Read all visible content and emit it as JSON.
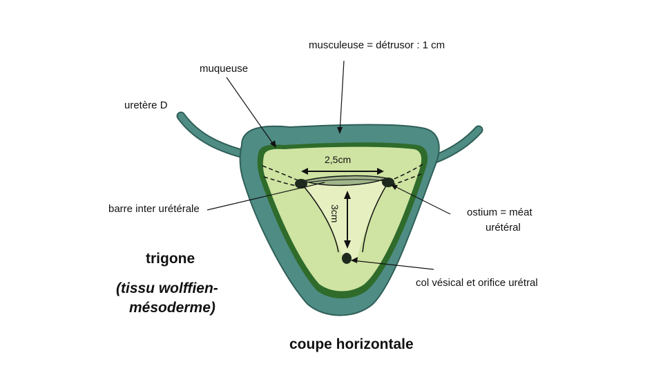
{
  "labels": {
    "musculeuse": "musculeuse = détrusor : 1 cm",
    "muqueuse": "muqueuse",
    "uretere": "uretère D",
    "barre": "barre inter urétérale",
    "ostium_line1": "ostium = méat",
    "ostium_line2": "urétéral",
    "col": "col vésical et orifice urétral"
  },
  "dimensions": {
    "width_label": "2,5cm",
    "height_label": "3cm"
  },
  "captions": {
    "trigone": "trigone",
    "tissu_line1": "(tissu wolffien-",
    "tissu_line2": "mésoderme)",
    "coupe": "coupe horizontale"
  },
  "colors": {
    "muscle": "#4f8c84",
    "muscle_dark": "#2f5f58",
    "mucosa_edge": "#2f6b2a",
    "mucosa_fill": "#cfe3a2",
    "trigone_fill": "#e6efc0",
    "ink": "#111111"
  }
}
